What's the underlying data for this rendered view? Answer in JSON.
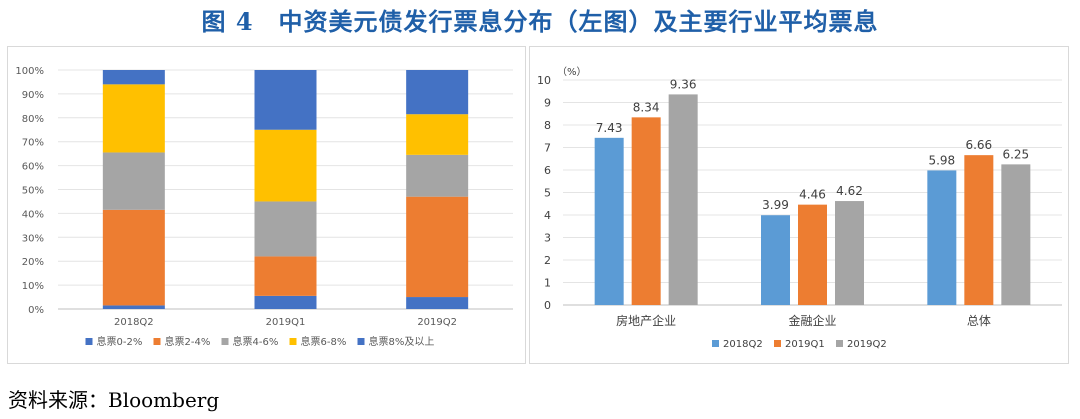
{
  "title": "图 4　中资美元债发行票息分布（左图）及主要行业平均票息",
  "source": "资料来源：Bloomberg",
  "colors": {
    "title": "#1f5fa8",
    "blue": "#4472c4",
    "orange": "#ed7d31",
    "gray": "#a5a5a5",
    "yellow": "#ffc000",
    "lightblue": "#5b9bd5"
  },
  "chart_data": [
    {
      "type": "bar",
      "stacked": true,
      "percent": true,
      "categories": [
        "2018Q2",
        "2019Q1",
        "2019Q2"
      ],
      "ylim": [
        0,
        100
      ],
      "yticks": [
        "0%",
        "10%",
        "20%",
        "30%",
        "40%",
        "50%",
        "60%",
        "70%",
        "80%",
        "90%",
        "100%"
      ],
      "legend_position": "bottom",
      "series": [
        {
          "name": "息票0-2%",
          "color": "#4472c4",
          "values": [
            1.5,
            5.5,
            5
          ]
        },
        {
          "name": "息票2-4%",
          "color": "#ed7d31",
          "values": [
            40,
            16.5,
            42
          ]
        },
        {
          "name": "息票4-6%",
          "color": "#a5a5a5",
          "values": [
            24,
            23,
            17.5
          ]
        },
        {
          "name": "息票6-8%",
          "color": "#ffc000",
          "values": [
            28.5,
            30,
            17
          ]
        },
        {
          "name": "息票8%及以上",
          "color": "#4472c4",
          "values": [
            6,
            25,
            18.5
          ]
        }
      ]
    },
    {
      "type": "bar",
      "categories": [
        "房地产企业",
        "金融企业",
        "总体"
      ],
      "ylabel": "（%）",
      "ylim": [
        0,
        10
      ],
      "yticks": [
        "0",
        "1",
        "2",
        "3",
        "4",
        "5",
        "6",
        "7",
        "8",
        "9",
        "10"
      ],
      "legend_position": "bottom",
      "series": [
        {
          "name": "2018Q2",
          "color": "#5b9bd5",
          "values": [
            7.43,
            3.99,
            5.98
          ]
        },
        {
          "name": "2019Q1",
          "color": "#ed7d31",
          "values": [
            8.34,
            4.46,
            6.66
          ]
        },
        {
          "name": "2019Q2",
          "color": "#a5a5a5",
          "values": [
            9.36,
            4.62,
            6.25
          ]
        }
      ]
    }
  ]
}
